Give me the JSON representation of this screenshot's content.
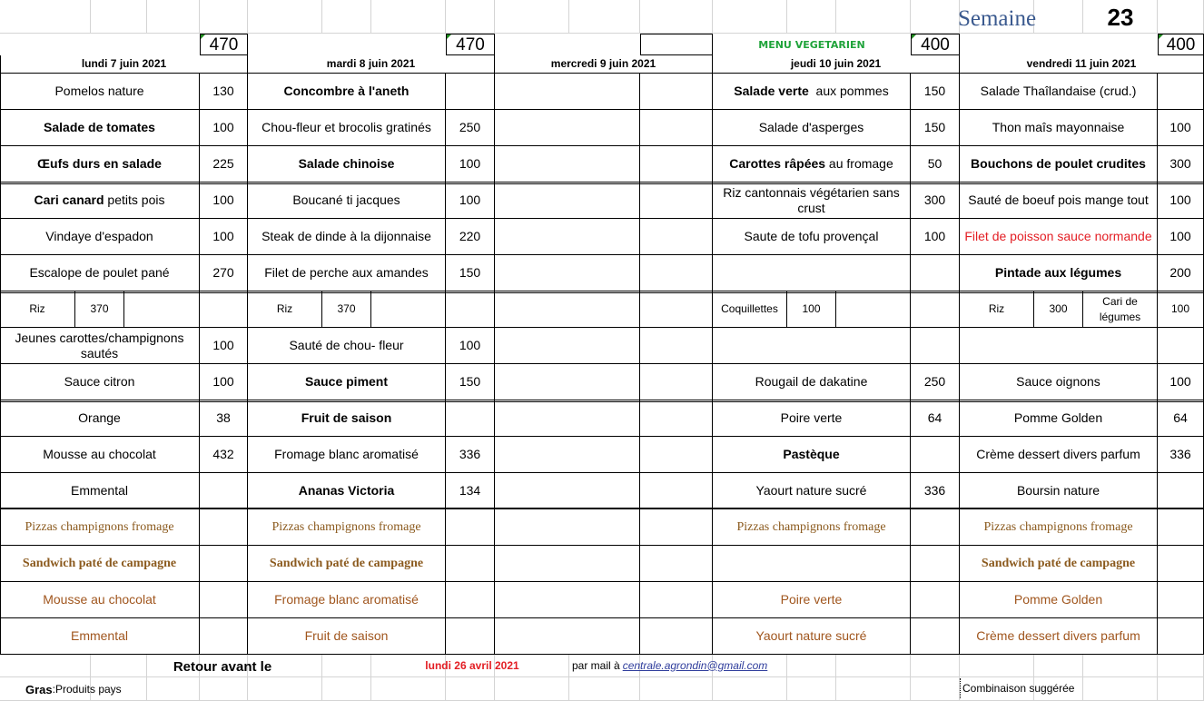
{
  "header": {
    "semaine_label": "Semaine",
    "semaine_number": "23",
    "menu_vegetarien": "MENU VEGETARIEN"
  },
  "quotas": [
    "470",
    "470",
    "",
    "400",
    "400"
  ],
  "days": [
    {
      "date": "lundi 7 juin 2021",
      "items": [
        {
          "name": "Pomelos nature",
          "qty": "130"
        },
        {
          "name": "Salade de tomates",
          "qty": "100",
          "style": "bold"
        },
        {
          "name": "Œufs durs en salade",
          "qty": "225",
          "style": "bold"
        },
        {
          "bold": "Cari canard",
          "rest": " petits pois",
          "qty": "100"
        },
        {
          "name": "Vindaye d'espadon",
          "qty": "100"
        },
        {
          "name": "Escalope de poulet pané",
          "qty": "270"
        },
        {
          "starch": "Riz",
          "starch_qty": "370",
          "extra": "",
          "extra_qty": ""
        },
        {
          "name": "Jeunes carottes/champignons sautés",
          "qty": "100"
        },
        {
          "name": "Sauce citron",
          "qty": "100"
        },
        {
          "name": "Orange",
          "qty": "38"
        },
        {
          "name": "Mousse au chocolat",
          "qty": "432"
        },
        {
          "name": "Emmental",
          "qty": ""
        }
      ],
      "alternatives": [
        "Pizzas champignons fromage",
        "Sandwich paté de campagne",
        "Mousse au chocolat",
        "Emmental"
      ]
    },
    {
      "date": "mardi 8 juin 2021",
      "items": [
        {
          "name": "Concombre à l'aneth",
          "qty": "",
          "style": "bold"
        },
        {
          "name": "Chou-fleur et brocolis gratinés",
          "qty": "250"
        },
        {
          "name": "Salade chinoise",
          "qty": "100",
          "style": "bold"
        },
        {
          "name": "Boucané ti jacques",
          "qty": "100"
        },
        {
          "name": "Steak de dinde à la dijonnaise",
          "qty": "220"
        },
        {
          "name": "Filet de perche aux amandes",
          "qty": "150"
        },
        {
          "starch": "Riz",
          "starch_qty": "370",
          "extra": "",
          "extra_qty": ""
        },
        {
          "name": "Sauté de chou- fleur",
          "qty": "100"
        },
        {
          "name": "Sauce piment",
          "qty": "150",
          "style": "bold"
        },
        {
          "name": "Fruit de saison",
          "qty": "",
          "style": "bold"
        },
        {
          "name": "Fromage blanc aromatisé",
          "qty": "336"
        },
        {
          "name": "Ananas Victoria",
          "qty": "134",
          "style": "bold"
        }
      ],
      "alternatives": [
        "Pizzas champignons fromage",
        "Sandwich paté de campagne",
        "Fromage blanc aromatisé",
        "Fruit de saison"
      ]
    },
    {
      "date": "mercredi 9 juin 2021",
      "items": [
        {
          "name": "",
          "qty": ""
        },
        {
          "name": "",
          "qty": ""
        },
        {
          "name": "",
          "qty": ""
        },
        {
          "name": "",
          "qty": ""
        },
        {
          "name": "",
          "qty": ""
        },
        {
          "name": "",
          "qty": ""
        },
        {
          "name": "",
          "qty": ""
        },
        {
          "name": "",
          "qty": ""
        },
        {
          "name": "",
          "qty": ""
        },
        {
          "name": "",
          "qty": ""
        },
        {
          "name": "",
          "qty": ""
        },
        {
          "name": "",
          "qty": ""
        }
      ],
      "alternatives": [
        "",
        "",
        "",
        ""
      ]
    },
    {
      "date": "jeudi 10 juin 2021",
      "items": [
        {
          "bold": "Salade verte",
          "rest": "  aux pommes",
          "qty": "150"
        },
        {
          "name": "Salade d'asperges",
          "qty": "150"
        },
        {
          "bold": "Carottes râpées",
          "rest": " au fromage",
          "qty": "50"
        },
        {
          "name": "Riz cantonnais végétarien sans crust",
          "qty": "300"
        },
        {
          "name": "Saute de tofu provençal",
          "qty": "100"
        },
        {
          "name": "",
          "qty": ""
        },
        {
          "starch": "Coquillettes",
          "starch_qty": "100",
          "extra": "",
          "extra_qty": ""
        },
        {
          "name": "",
          "qty": ""
        },
        {
          "name": "Rougail de dakatine",
          "qty": "250"
        },
        {
          "name": "Poire verte",
          "qty": "64"
        },
        {
          "name": "Pastèque",
          "qty": "",
          "style": "bold"
        },
        {
          "name": "Yaourt nature sucré",
          "qty": "336"
        }
      ],
      "alternatives": [
        "Pizzas champignons fromage",
        "",
        "Poire verte",
        "Yaourt nature sucré"
      ]
    },
    {
      "date": "vendredi 11 juin 2021",
      "items": [
        {
          "name": "Salade Thaîlandaise (crud.)",
          "qty": ""
        },
        {
          "name": "Thon maîs mayonnaise",
          "qty": "100"
        },
        {
          "name": "Bouchons de poulet crudites",
          "qty": "300",
          "style": "bold"
        },
        {
          "name": "Sauté de boeuf  pois mange tout",
          "qty": "100"
        },
        {
          "name": "Filet de poisson sauce normande",
          "qty": "100",
          "style": "red"
        },
        {
          "name": "Pintade aux légumes",
          "qty": "200",
          "style": "bold"
        },
        {
          "starch": "Riz",
          "starch_qty": "300",
          "extra": "Cari de légumes",
          "extra_qty": "100"
        },
        {
          "name": "",
          "qty": ""
        },
        {
          "name": "Sauce oignons",
          "qty": "100"
        },
        {
          "name": "Pomme Golden",
          "qty": "64"
        },
        {
          "name": "Crème dessert divers parfum",
          "qty": "336"
        },
        {
          "name": "Boursin nature",
          "qty": ""
        }
      ],
      "alternatives": [
        "Pizzas champignons fromage",
        "Sandwich paté de campagne",
        "Pomme Golden",
        "Crème dessert divers parfum"
      ]
    }
  ],
  "footer": {
    "retour_label": "Retour avant le",
    "retour_date": "lundi 26 avril 2021",
    "mail_label": "par mail à ",
    "mail_link": "centrale.agrondin@gmail.com",
    "gras_label": "Gras",
    "gras_text": ":Produits pays",
    "combinaison": "Combinaison suggérée"
  },
  "colors": {
    "vegetarien": "#1fa33a",
    "semaine": "#3b5a8f",
    "red": "#e31e24",
    "brown": "#8b5a1e",
    "link": "#2f3d9c"
  }
}
